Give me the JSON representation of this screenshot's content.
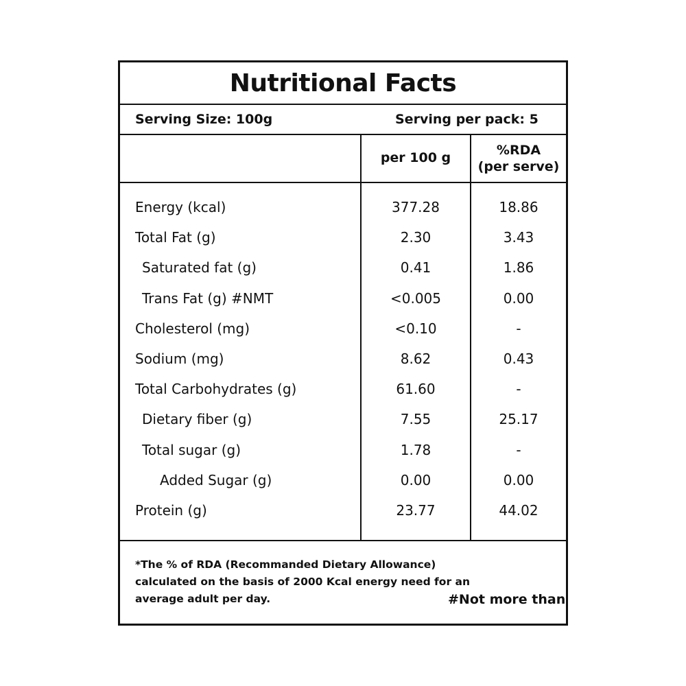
{
  "title": "Nutritional Facts",
  "serving": {
    "size": "Serving Size: 100g",
    "per_pack": "Serving per pack: 5"
  },
  "columns": {
    "per100": "per 100 g",
    "rda_line1": "%RDA",
    "rda_line2": "(per serve)"
  },
  "rows": [
    {
      "label": "Energy (kcal)",
      "per100": "377.28",
      "rda": "18.86",
      "indent": 0
    },
    {
      "label": "Total Fat (g)",
      "per100": "2.30",
      "rda": "3.43",
      "indent": 0
    },
    {
      "label": "Saturated fat (g)",
      "per100": "0.41",
      "rda": "1.86",
      "indent": 1
    },
    {
      "label": "Trans Fat (g) #NMT",
      "per100": "<0.005",
      "rda": "0.00",
      "indent": 1
    },
    {
      "label": "Cholesterol (mg)",
      "per100": "<0.10",
      "rda": "-",
      "indent": 0
    },
    {
      "label": "Sodium (mg)",
      "per100": "8.62",
      "rda": "0.43",
      "indent": 0
    },
    {
      "label": "Total Carbohydrates  (g)",
      "per100": "61.60",
      "rda": "-",
      "indent": 0
    },
    {
      "label": "Dietary fiber (g)",
      "per100": "7.55",
      "rda": "25.17",
      "indent": 1
    },
    {
      "label": "Total sugar (g)",
      "per100": "1.78",
      "rda": "-",
      "indent": 1
    },
    {
      "label": "Added Sugar (g)",
      "per100": "0.00",
      "rda": "0.00",
      "indent": 2
    },
    {
      "label": "Protein (g)",
      "per100": "23.77",
      "rda": "44.02",
      "indent": 0
    }
  ],
  "footer": {
    "footnote": "*The % of RDA (Recommanded Dietary Allowance) calculated on the basis of 2000 Kcal energy need for an average adult per day.",
    "nmt": "#Not more than"
  }
}
